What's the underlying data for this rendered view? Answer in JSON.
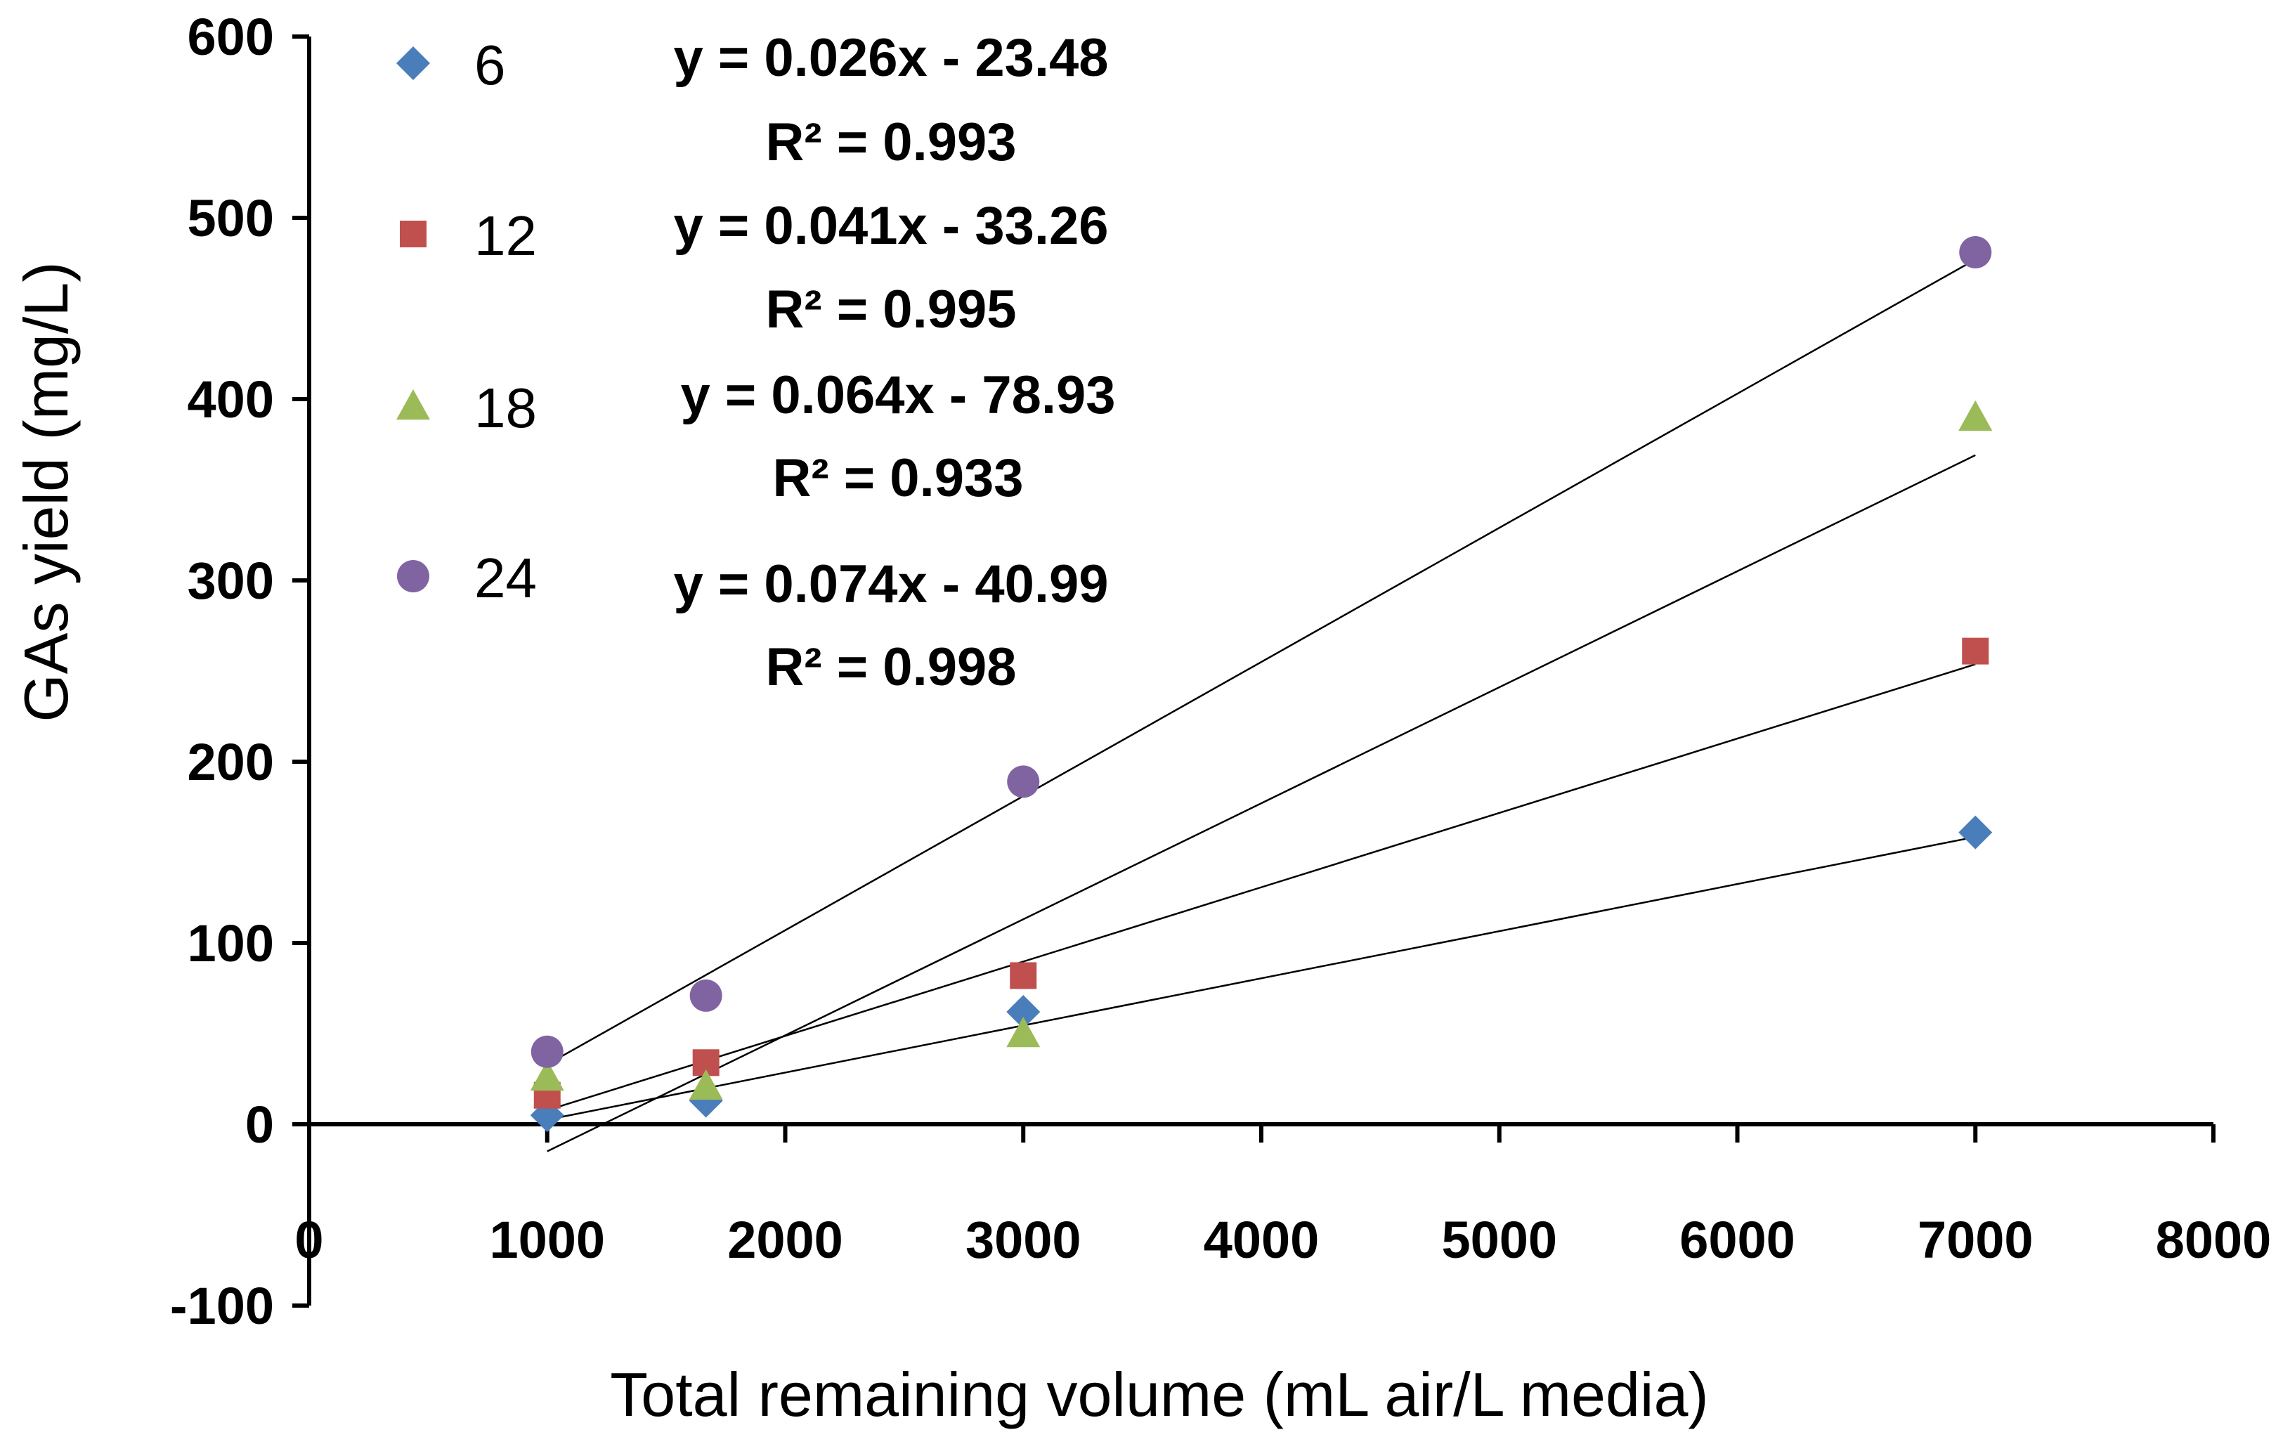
{
  "chart_data": {
    "type": "scatter",
    "title": "",
    "xlabel": "Total remaining volume  (mL air/L media)",
    "ylabel": "GAs yield (mg/L)",
    "xlim": [
      0,
      8000
    ],
    "ylim": [
      -100,
      600
    ],
    "xticks": [
      "0",
      "1000",
      "2000",
      "3000",
      "4000",
      "5000",
      "6000",
      "7000",
      "8000"
    ],
    "yticks": [
      "-100",
      "0",
      "100",
      "200",
      "300",
      "400",
      "500",
      "600"
    ],
    "grid": false,
    "legend_position": "top-left",
    "series": [
      {
        "name": "6",
        "marker": "diamond",
        "color": "#4a7ebb",
        "x": [
          1000,
          1667,
          3000,
          7000
        ],
        "y": [
          5,
          13,
          62,
          161
        ],
        "trendline": {
          "slope": 0.026,
          "intercept": -23.48,
          "x_range": [
            1000,
            7000
          ]
        },
        "equation": "y = 0.026x - 23.48",
        "r2": "R² = 0.993"
      },
      {
        "name": "12",
        "marker": "square",
        "color": "#c0504d",
        "x": [
          1000,
          1667,
          3000,
          7000
        ],
        "y": [
          16,
          34,
          82,
          261
        ],
        "trendline": {
          "slope": 0.041,
          "intercept": -33.26,
          "x_range": [
            1000,
            7000
          ]
        },
        "equation": "y = 0.041x - 33.26",
        "r2": "R² = 0.995"
      },
      {
        "name": "18",
        "marker": "triangle",
        "color": "#9bbb59",
        "x": [
          1000,
          1667,
          3000,
          7000
        ],
        "y": [
          26,
          21,
          50,
          390
        ],
        "trendline": {
          "slope": 0.064,
          "intercept": -78.93,
          "x_range": [
            1000,
            7000
          ]
        },
        "equation": "y = 0.064x - 78.93",
        "r2": "R² = 0.933"
      },
      {
        "name": "24",
        "marker": "circle",
        "color": "#8064a2",
        "x": [
          1000,
          1667,
          3000,
          7000
        ],
        "y": [
          40,
          71,
          189,
          481
        ],
        "trendline": {
          "slope": 0.074,
          "intercept": -40.99,
          "x_range": [
            1000,
            7000
          ]
        },
        "equation": "y = 0.074x - 40.99",
        "r2": "R² = 0.998"
      }
    ]
  }
}
